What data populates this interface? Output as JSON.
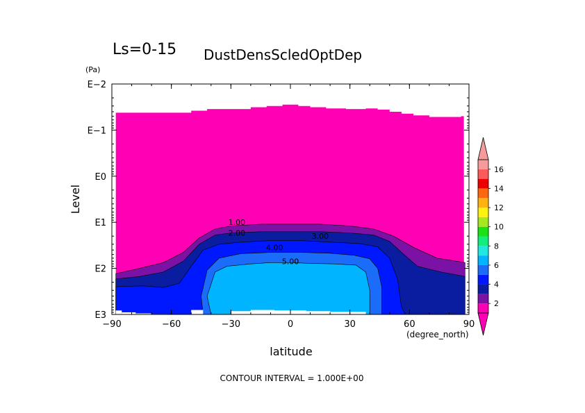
{
  "chart_data": {
    "type": "heatmap",
    "title_left": "Ls=0-15",
    "title": "DustDensScledOptDep",
    "xlabel": "latitude",
    "xunit": "(degree_north)",
    "ylabel": "Level",
    "yunit": "(Pa)",
    "footer": "CONTOUR INTERVAL = 1.000E+00",
    "x_ticks": [
      -90,
      -60,
      -30,
      0,
      30,
      60,
      90
    ],
    "x_tick_labels": [
      "−90",
      "−60",
      "−30",
      "0",
      "30",
      "60",
      "90"
    ],
    "xlim": [
      -90,
      90
    ],
    "y_scale": "log",
    "ylim_pa": [
      0.01,
      1000
    ],
    "y_ticks_pa": [
      0.01,
      0.1,
      1,
      10,
      100,
      1000
    ],
    "y_tick_labels": [
      "E−2",
      "E−1",
      "E0",
      "E1",
      "E2",
      "E3"
    ],
    "contour_interval": 1.0,
    "contour_labels": [
      {
        "text": "1.00",
        "lat": -27,
        "pa": 10
      },
      {
        "text": "2.00",
        "lat": -27,
        "pa": 17
      },
      {
        "text": "3.00",
        "lat": 15,
        "pa": 20
      },
      {
        "text": "4.00",
        "lat": -8,
        "pa": 35
      },
      {
        "text": "5.00",
        "lat": 0,
        "pa": 70
      }
    ],
    "colorbar": {
      "levels": [
        1,
        2,
        3,
        4,
        5,
        6,
        7,
        8,
        9,
        10,
        11,
        12,
        13,
        14,
        15,
        16,
        17
      ],
      "tick_labels": [
        "2",
        "4",
        "6",
        "8",
        "10",
        "12",
        "14",
        "16"
      ],
      "tick_values": [
        2,
        4,
        6,
        8,
        10,
        12,
        14,
        16
      ],
      "colors": [
        "#ff00b4",
        "#7c11a6",
        "#0a1da0",
        "#0018ff",
        "#1b6cf9",
        "#00b4ff",
        "#1ee8e0",
        "#11ee7e",
        "#1be213",
        "#a6e81f",
        "#fff210",
        "#ffb210",
        "#ff6610",
        "#ee0000",
        "#ff5a5a",
        "#f59b9b"
      ],
      "under_color": "#ff00b4",
      "over_color": "#f59b9b"
    },
    "regions": [
      {
        "level_range": "<1",
        "color": "#ff00b4",
        "top_boundary": [
          [
            -88,
            0.042
          ],
          [
            -78,
            0.042
          ],
          [
            -58,
            0.042
          ],
          [
            -50,
            0.038
          ],
          [
            -42,
            0.035
          ],
          [
            -28,
            0.035
          ],
          [
            -20,
            0.032
          ],
          [
            -12,
            0.03
          ],
          [
            -4,
            0.028
          ],
          [
            0,
            0.028
          ],
          [
            4,
            0.03
          ],
          [
            10,
            0.032
          ],
          [
            18,
            0.034
          ],
          [
            28,
            0.035
          ],
          [
            38,
            0.034
          ],
          [
            44,
            0.036
          ],
          [
            50,
            0.04
          ],
          [
            56,
            0.044
          ],
          [
            62,
            0.048
          ],
          [
            70,
            0.052
          ],
          [
            80,
            0.052
          ],
          [
            86,
            0.05
          ]
        ]
      },
      {
        "level_range": "1-2",
        "color": "#7c11a6",
        "top_boundary": [
          [
            -88,
            130
          ],
          [
            -76,
            100
          ],
          [
            -64,
            75
          ],
          [
            -54,
            45
          ],
          [
            -46,
            22
          ],
          [
            -38,
            14
          ],
          [
            -30,
            12
          ],
          [
            -15,
            11
          ],
          [
            0,
            11
          ],
          [
            15,
            11
          ],
          [
            30,
            12
          ],
          [
            42,
            14
          ],
          [
            52,
            20
          ],
          [
            62,
            35
          ],
          [
            74,
            60
          ],
          [
            88,
            75
          ]
        ]
      },
      {
        "level_range": "2-3",
        "color": "#0a1da0",
        "top_boundary": [
          [
            -88,
            170
          ],
          [
            -76,
            150
          ],
          [
            -64,
            120
          ],
          [
            -54,
            70
          ],
          [
            -46,
            30
          ],
          [
            -38,
            19
          ],
          [
            -30,
            17
          ],
          [
            -15,
            16
          ],
          [
            0,
            16
          ],
          [
            15,
            16
          ],
          [
            30,
            17
          ],
          [
            42,
            19
          ],
          [
            50,
            26
          ],
          [
            56,
            45
          ],
          [
            64,
            90
          ],
          [
            76,
            120
          ],
          [
            88,
            150
          ]
        ]
      },
      {
        "level_range": "3-4",
        "color": "#0018ff",
        "top_boundary": [
          [
            -88,
            250
          ],
          [
            -74,
            240
          ],
          [
            -64,
            260
          ],
          [
            -56,
            210
          ],
          [
            -50,
            90
          ],
          [
            -44,
            40
          ],
          [
            -36,
            30
          ],
          [
            -25,
            27
          ],
          [
            -10,
            25
          ],
          [
            5,
            25
          ],
          [
            20,
            27
          ],
          [
            35,
            29
          ],
          [
            44,
            34
          ],
          [
            50,
            60
          ],
          [
            54,
            170
          ],
          [
            56,
            700
          ],
          [
            58,
            1000
          ]
        ]
      },
      {
        "level_range": "4-5",
        "color": "#1b6cf9",
        "top_boundary": [
          [
            -44,
            1000
          ],
          [
            -45,
            400
          ],
          [
            -42,
            110
          ],
          [
            -36,
            60
          ],
          [
            -25,
            48
          ],
          [
            -10,
            45
          ],
          [
            5,
            45
          ],
          [
            20,
            47
          ],
          [
            32,
            52
          ],
          [
            40,
            62
          ],
          [
            44,
            100
          ],
          [
            46,
            250
          ],
          [
            46,
            1000
          ]
        ]
      },
      {
        "level_range": "5-6",
        "color": "#00b4ff",
        "top_boundary": [
          [
            -40,
            1000
          ],
          [
            -42,
            400
          ],
          [
            -38,
            120
          ],
          [
            -32,
            90
          ],
          [
            -20,
            80
          ],
          [
            -10,
            75
          ],
          [
            0,
            75
          ],
          [
            10,
            78
          ],
          [
            22,
            80
          ],
          [
            33,
            85
          ],
          [
            38,
            120
          ],
          [
            40,
            300
          ],
          [
            40,
            1000
          ]
        ]
      }
    ],
    "missing_top_pa_at_lat": [
      [
        -88,
        0.042
      ],
      [
        86,
        0.05
      ]
    ],
    "missing_bottom_note": "white gaps near surface at bottom edge"
  }
}
